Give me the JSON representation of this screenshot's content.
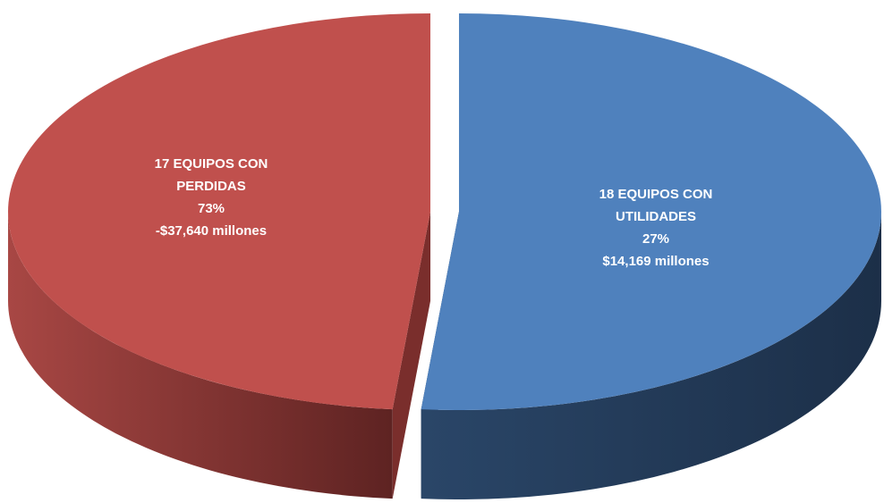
{
  "chart_data": {
    "type": "pie",
    "categories": [
      "17 EQUIPOS CON PERDIDAS",
      "18 EQUIPOS CON UTILIDADES"
    ],
    "values": [
      17,
      18
    ],
    "colors": [
      "#c0504d",
      "#4f81bd"
    ],
    "percentages": [
      73,
      27
    ],
    "percentage_labels": [
      "73%",
      "27%"
    ],
    "amounts": [
      -37640,
      14169
    ],
    "amount_labels": [
      "-$37,640 millones",
      "$14,169 millones"
    ]
  }
}
